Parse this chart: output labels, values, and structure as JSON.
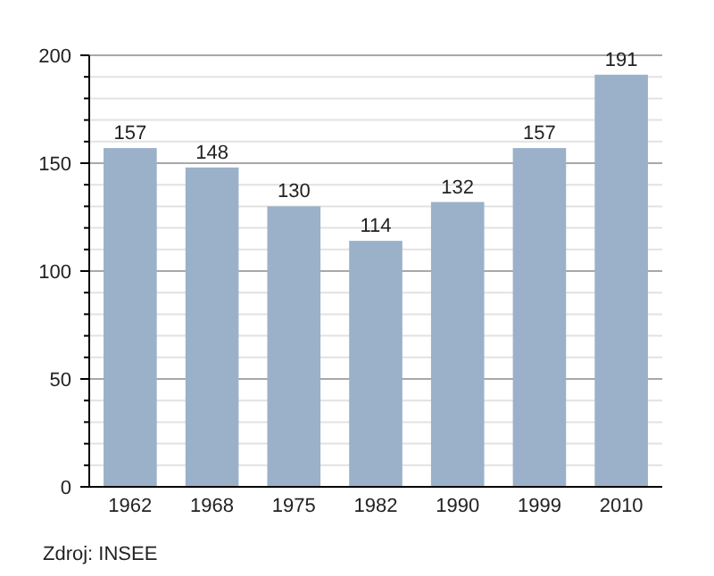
{
  "chart_data": {
    "type": "bar",
    "categories": [
      "1962",
      "1968",
      "1975",
      "1982",
      "1990",
      "1999",
      "2010"
    ],
    "values": [
      157,
      148,
      130,
      114,
      132,
      157,
      191
    ],
    "color": "#9ab1c9",
    "ylim": [
      0,
      200
    ],
    "yticks": [
      0,
      {
        "value": 10,
        "label": null
      },
      {
        "value": 20,
        "label": null
      },
      {
        "value": 30,
        "label": null
      },
      {
        "value": 40,
        "label": null
      },
      50,
      {
        "value": 60,
        "label": null
      },
      {
        "value": 70,
        "label": null
      },
      {
        "value": 80,
        "label": null
      },
      {
        "value": 90,
        "label": null
      },
      100,
      {
        "value": 110,
        "label": null
      },
      {
        "value": 120,
        "label": null
      },
      {
        "value": 130,
        "label": null
      },
      {
        "value": 140,
        "label": null
      },
      150,
      {
        "value": 160,
        "label": null
      },
      {
        "value": 170,
        "label": null
      },
      {
        "value": 180,
        "label": null
      },
      {
        "value": 190,
        "label": null
      },
      200
    ],
    "grid": true,
    "data_labels": true,
    "annotations": [
      "Zdroj: INSEE"
    ]
  }
}
